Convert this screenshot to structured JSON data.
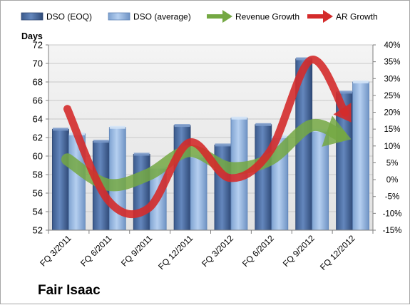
{
  "chart_data": {
    "type": "bar",
    "title": "",
    "company": "Fair Isaac",
    "categories": [
      "FQ 3/2011",
      "FQ 6/2011",
      "FQ 9/2011",
      "FQ 12/2011",
      "FQ 3/2012",
      "FQ 6/2012",
      "FQ 9/2012",
      "FQ 12/2012"
    ],
    "ylabel": "Days",
    "ylim": [
      52,
      72
    ],
    "y_ticks": [
      "52",
      "54",
      "56",
      "58",
      "60",
      "62",
      "64",
      "66",
      "68",
      "70",
      "72"
    ],
    "y2lim": [
      -15,
      40
    ],
    "y2_ticks": [
      "-15%",
      "-10%",
      "-5%",
      "0%",
      "5%",
      "10%",
      "15%",
      "20%",
      "25%",
      "30%",
      "35%",
      "40%"
    ],
    "legend_position": "top",
    "series": [
      {
        "name": "DSO (EOQ)",
        "kind": "bar",
        "axis": "left",
        "color": "#4a6a9c",
        "values": [
          62.9,
          61.6,
          60.2,
          63.3,
          61.2,
          63.4,
          70.5,
          66.9
        ]
      },
      {
        "name": "DSO (average)",
        "kind": "bar",
        "axis": "left",
        "color": "#8eb1dc",
        "values": [
          62.4,
          63.1,
          58.8,
          60.0,
          64.1,
          62.1,
          62.8,
          68.0
        ]
      },
      {
        "name": "Revenue Growth",
        "kind": "line-arrow",
        "axis": "right",
        "color": "#74a843",
        "values": [
          6,
          -1.5,
          1.5,
          8.5,
          3.5,
          6,
          16,
          12
        ]
      },
      {
        "name": "AR Growth",
        "kind": "line-arrow",
        "axis": "right",
        "color": "#d42b2b",
        "values": [
          21,
          -6,
          -8.5,
          11,
          0.5,
          8.5,
          35.5,
          17
        ]
      }
    ]
  }
}
